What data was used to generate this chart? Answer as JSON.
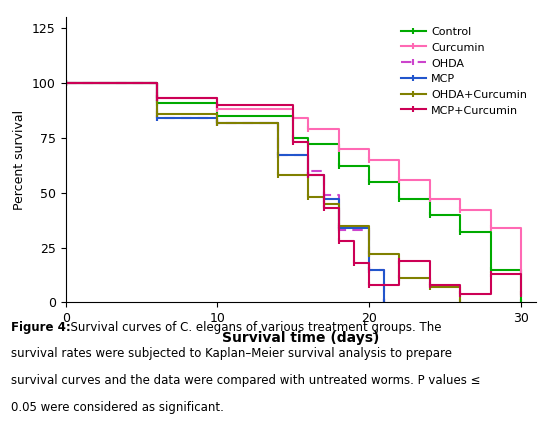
{
  "xlabel": "Survival time (days)",
  "ylabel": "Percent survival",
  "xlim": [
    0,
    31
  ],
  "ylim": [
    0,
    130
  ],
  "yticks": [
    0,
    25,
    50,
    75,
    100,
    125
  ],
  "xticks": [
    0,
    10,
    20,
    30
  ],
  "caption_bold": "Figure 4:",
  "caption_normal": "  Survival curves of C. elegans of various treatment groups. The survival rates were subjected to Kaplan–Meier survival analysis to prepare survival curves and the data were compared with untreated worms. P values ≤ 0.05 were considered as significant.",
  "control_x": [
    0,
    6,
    6,
    10,
    10,
    15,
    15,
    16,
    16,
    18,
    18,
    20,
    20,
    22,
    22,
    24,
    24,
    26,
    26,
    28,
    28,
    30,
    30
  ],
  "control_y": [
    100,
    100,
    91,
    91,
    85,
    85,
    75,
    75,
    72,
    72,
    62,
    62,
    55,
    55,
    47,
    47,
    40,
    40,
    32,
    32,
    15,
    15,
    0
  ],
  "curcumin_x": [
    0,
    6,
    6,
    10,
    10,
    15,
    15,
    16,
    16,
    18,
    18,
    20,
    20,
    22,
    22,
    24,
    24,
    26,
    26,
    28,
    28,
    30,
    30
  ],
  "curcumin_y": [
    100,
    100,
    93,
    93,
    88,
    88,
    84,
    84,
    79,
    79,
    70,
    70,
    65,
    65,
    56,
    56,
    47,
    47,
    42,
    42,
    34,
    34,
    14
  ],
  "ohda_x": [
    0,
    6,
    6,
    10,
    10,
    14,
    14,
    16,
    16,
    17,
    17,
    18,
    18,
    20,
    20,
    21,
    21
  ],
  "ohda_y": [
    100,
    100,
    84,
    84,
    82,
    82,
    67,
    67,
    60,
    60,
    49,
    49,
    33,
    33,
    15,
    15,
    0
  ],
  "mcp_x": [
    0,
    6,
    6,
    10,
    10,
    14,
    14,
    16,
    16,
    17,
    17,
    18,
    18,
    20,
    20,
    21,
    21
  ],
  "mcp_y": [
    100,
    100,
    84,
    84,
    82,
    82,
    67,
    67,
    58,
    58,
    47,
    47,
    34,
    34,
    15,
    15,
    0
  ],
  "ohda_cur_x": [
    0,
    6,
    6,
    10,
    10,
    14,
    14,
    16,
    16,
    17,
    17,
    18,
    18,
    20,
    20,
    22,
    22,
    24,
    24,
    26,
    26
  ],
  "ohda_cur_y": [
    100,
    100,
    86,
    86,
    82,
    82,
    58,
    58,
    48,
    48,
    45,
    45,
    35,
    35,
    22,
    22,
    11,
    11,
    7,
    7,
    0
  ],
  "mcp_cur_x": [
    0,
    6,
    6,
    10,
    10,
    15,
    15,
    16,
    16,
    17,
    17,
    18,
    18,
    19,
    19,
    20,
    20,
    22,
    22,
    24,
    24,
    26,
    26,
    28,
    28,
    30,
    30
  ],
  "mcp_cur_y": [
    100,
    100,
    93,
    93,
    90,
    90,
    73,
    73,
    58,
    58,
    43,
    43,
    28,
    28,
    18,
    18,
    8,
    8,
    19,
    19,
    8,
    8,
    4,
    4,
    13,
    13,
    4
  ],
  "color_control": "#00aa00",
  "color_curcumin": "#ff69b4",
  "color_ohda": "#cc44cc",
  "color_mcp": "#2255cc",
  "color_ohda_cur": "#808000",
  "color_mcp_cur": "#cc0055"
}
